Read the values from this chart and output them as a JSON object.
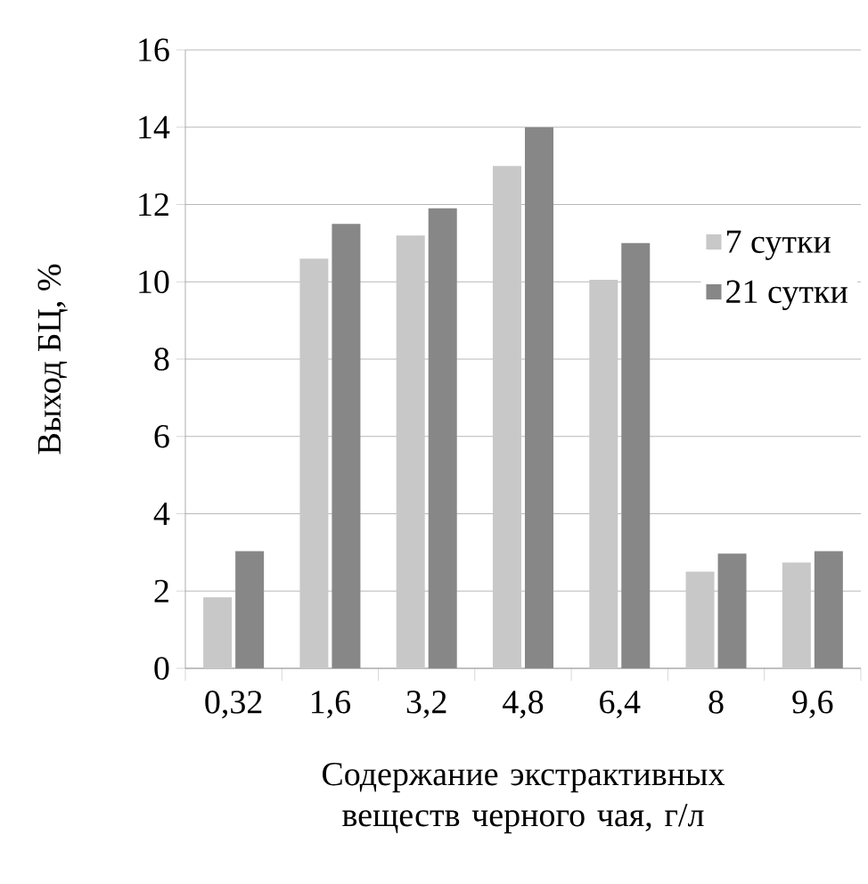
{
  "chart_data": {
    "type": "bar",
    "ylabel": "Выход БЦ, %",
    "xlabel": "Содержание экстрактивных веществ черного чая, г/л",
    "categories": [
      "0,32",
      "1,6",
      "3,2",
      "4,8",
      "6,4",
      "8",
      "9,6"
    ],
    "series": [
      {
        "name": "7 сутки",
        "color": "#c8c8c8",
        "values": [
          1.84,
          10.6,
          11.2,
          13.0,
          10.05,
          2.5,
          2.74
        ]
      },
      {
        "name": "21 сутки",
        "color": "#878787",
        "values": [
          3.03,
          11.5,
          11.9,
          14.0,
          11.0,
          2.97,
          3.03
        ]
      }
    ],
    "ylim": [
      0,
      16
    ],
    "yticks": [
      0,
      2,
      4,
      6,
      8,
      10,
      12,
      14,
      16
    ],
    "grid": "y",
    "legend": "right"
  }
}
